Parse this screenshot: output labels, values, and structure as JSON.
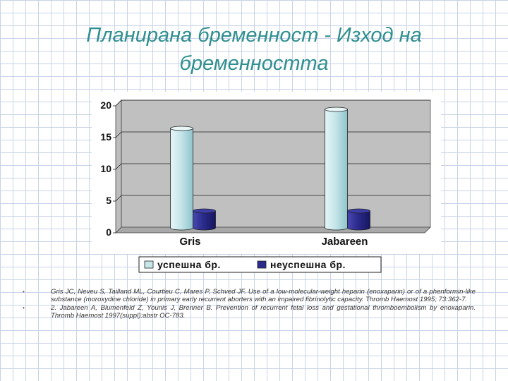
{
  "slide": {
    "title_line1": "Планирана бременност - Изход на",
    "title_line2": "бременността"
  },
  "chart_data": {
    "type": "bar",
    "categories": [
      "Gris",
      "Jabareen"
    ],
    "series": [
      {
        "name": "успешна бр.",
        "values": [
          16,
          19
        ],
        "color": "#c6e6ea"
      },
      {
        "name": "неуспешна бр.",
        "values": [
          3,
          3
        ],
        "color": "#2b2b8c"
      }
    ],
    "yticks": [
      0,
      5,
      10,
      15,
      20
    ],
    "ylim": [
      0,
      20
    ],
    "grid": true,
    "legend_position": "bottom",
    "plot_background": "#c0c0c0"
  },
  "references": [
    {
      "bullet": "•",
      "text": "Gris JC, Neveu S, Tailland ML, Courtieu C, Mares P, Schved JF. Use of a low-molecular-weight heparin (enoxaparin) or of a phenformin-like substance (moroxydine chloride) in primary early recurrent aborters with an impaired fibrinolytic capacity. Thromb Haemost 1995; 73:362-7."
    },
    {
      "bullet": "•",
      "text": "2. Jabareen A, Blumenfeld Z, Younis J, Brenner B. Prevention of recurrent fetal loss and gestational thromboembolism by enoxaparin. Thromb Haemost 1997(suppl):abstr OC-783."
    }
  ]
}
